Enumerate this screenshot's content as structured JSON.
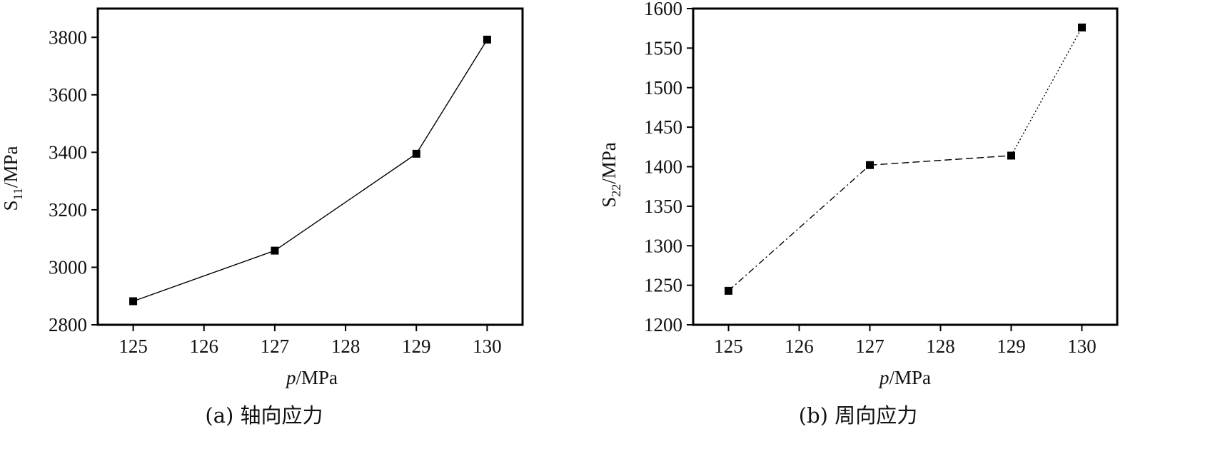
{
  "chart_data": [
    {
      "type": "line",
      "caption": "(a)  轴向应力",
      "xlabel": {
        "italic": "p",
        "rest": "/MPa"
      },
      "ylabel": {
        "base": "S",
        "sub": "11",
        "rest": "/MPa"
      },
      "x": [
        125,
        127,
        129,
        130
      ],
      "y": [
        2882,
        3058,
        3395,
        3792
      ],
      "xlim": [
        124.5,
        130.5
      ],
      "ylim": [
        2800,
        3900
      ],
      "xticks": [
        125,
        126,
        127,
        128,
        129,
        130
      ],
      "yticks": [
        2800,
        3000,
        3200,
        3400,
        3600,
        3800
      ],
      "line_style": [
        "solid",
        "solid",
        "solid"
      ],
      "marker": "square",
      "grid": false,
      "legend": "none"
    },
    {
      "type": "line",
      "caption": "(b)  周向应力",
      "xlabel": {
        "italic": "p",
        "rest": "/MPa"
      },
      "ylabel": {
        "base": "S",
        "sub": "22",
        "rest": "/MPa"
      },
      "x": [
        125,
        127,
        129,
        130
      ],
      "y": [
        1243,
        1402,
        1414,
        1576
      ],
      "xlim": [
        124.5,
        130.5
      ],
      "ylim": [
        1200,
        1600
      ],
      "xticks": [
        125,
        126,
        127,
        128,
        129,
        130
      ],
      "yticks": [
        1200,
        1250,
        1300,
        1350,
        1400,
        1450,
        1500,
        1550,
        1600
      ],
      "line_style": [
        "dashdot",
        "dashed",
        "dotted"
      ],
      "marker": "square",
      "grid": false,
      "legend": "none"
    }
  ]
}
